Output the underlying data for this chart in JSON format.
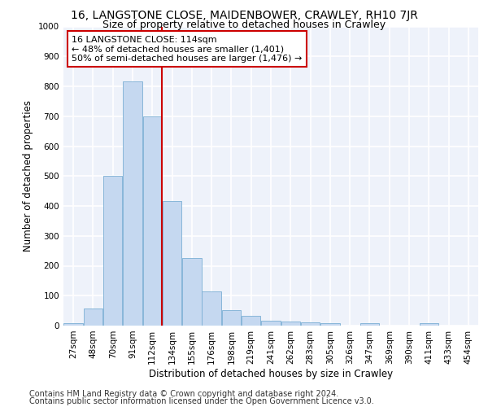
{
  "title": "16, LANGSTONE CLOSE, MAIDENBOWER, CRAWLEY, RH10 7JR",
  "subtitle": "Size of property relative to detached houses in Crawley",
  "xlabel": "Distribution of detached houses by size in Crawley",
  "ylabel": "Number of detached properties",
  "bar_labels": [
    "27sqm",
    "48sqm",
    "70sqm",
    "91sqm",
    "112sqm",
    "134sqm",
    "155sqm",
    "176sqm",
    "198sqm",
    "219sqm",
    "241sqm",
    "262sqm",
    "283sqm",
    "305sqm",
    "326sqm",
    "347sqm",
    "369sqm",
    "390sqm",
    "411sqm",
    "433sqm",
    "454sqm"
  ],
  "bar_values": [
    8,
    57,
    500,
    815,
    700,
    415,
    225,
    115,
    52,
    33,
    15,
    13,
    11,
    8,
    0,
    8,
    0,
    0,
    8,
    0,
    0
  ],
  "bar_color": "#c5d8f0",
  "bar_edge_color": "#7bafd4",
  "vline_color": "#cc0000",
  "annotation_text": "16 LANGSTONE CLOSE: 114sqm\n← 48% of detached houses are smaller (1,401)\n50% of semi-detached houses are larger (1,476) →",
  "annotation_box_color": "#cc0000",
  "ylim": [
    0,
    1000
  ],
  "yticks": [
    0,
    100,
    200,
    300,
    400,
    500,
    600,
    700,
    800,
    900,
    1000
  ],
  "footer_line1": "Contains HM Land Registry data © Crown copyright and database right 2024.",
  "footer_line2": "Contains public sector information licensed under the Open Government Licence v3.0.",
  "bg_color": "#eef2fa",
  "grid_color": "#ffffff",
  "title_fontsize": 10,
  "subtitle_fontsize": 9,
  "axis_label_fontsize": 8.5,
  "tick_fontsize": 7.5,
  "annotation_fontsize": 8,
  "footer_fontsize": 7
}
